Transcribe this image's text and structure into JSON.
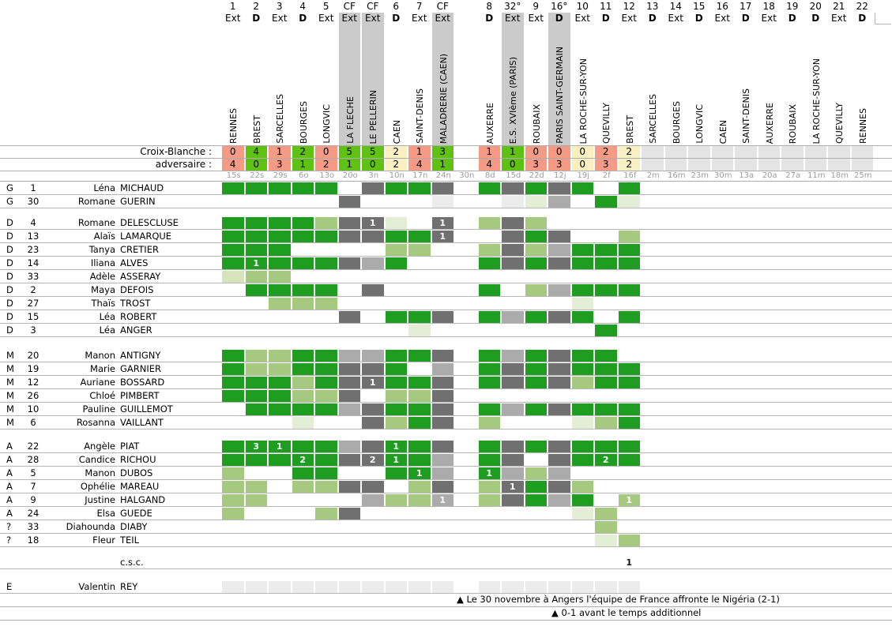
{
  "labels": {
    "team": "Croix-Blanche :",
    "opponent": "adversaire :",
    "own_goal_row": "c.s.c."
  },
  "palette": {
    "cell": {
      "G": "#1f9d20",
      "g": "#a4c97f",
      "p": "#d5e4ba",
      "f": "#e4eed6",
      "K": "#707070",
      "k": "#ababab",
      "L": "#ececec",
      "n": "transparent"
    },
    "score": {
      "win": "#5ec114",
      "loss": "#f49a85",
      "draw": "#f8f0c2",
      "future": "#e4e4e4",
      "none": "transparent"
    },
    "cup_band": "#cbcbcb"
  },
  "legend_hint": {
    "G": "full-match",
    "g": "partial-match",
    "p": "short-appearance",
    "f": "brief-appearance",
    "K": "cup-match-full",
    "k": "cup-match-partial",
    "L": "in-squad",
    "n": "text-only"
  },
  "columns": [
    {
      "num": "1",
      "venue": "Ext",
      "opp": "RENNES",
      "home": "0",
      "away": "4",
      "result": "loss",
      "date": "15s",
      "cup": false
    },
    {
      "num": "2",
      "venue": "D",
      "opp": "BREST",
      "home": "4",
      "away": "0",
      "result": "win",
      "date": "22s",
      "cup": false
    },
    {
      "num": "3",
      "venue": "Ext",
      "opp": "SARCELLES",
      "home": "1",
      "away": "3",
      "result": "loss",
      "date": "29s",
      "cup": false
    },
    {
      "num": "4",
      "venue": "D",
      "opp": "BOURGES",
      "home": "2",
      "away": "1",
      "result": "win",
      "date": "6o",
      "cup": false
    },
    {
      "num": "5",
      "venue": "Ext",
      "opp": "LONGVIC",
      "home": "0",
      "away": "2",
      "result": "loss",
      "date": "13o",
      "cup": false
    },
    {
      "num": "CF",
      "venue": "Ext",
      "opp": "LA FLECHE",
      "home": "5",
      "away": "1",
      "result": "win",
      "date": "20o",
      "cup": true
    },
    {
      "num": "CF",
      "venue": "Ext",
      "opp": "LE PELLERIN",
      "home": "5",
      "away": "0",
      "result": "win",
      "date": "3n",
      "cup": true
    },
    {
      "num": "6",
      "venue": "D",
      "opp": "CAEN",
      "home": "2",
      "away": "2",
      "result": "draw",
      "date": "10n",
      "cup": false
    },
    {
      "num": "7",
      "venue": "Ext",
      "opp": "SAINT-DENIS",
      "home": "1",
      "away": "4",
      "result": "loss",
      "date": "17n",
      "cup": false
    },
    {
      "num": "CF",
      "venue": "Ext",
      "opp": "MALADRERIE (CAEN)",
      "home": "3",
      "away": "1",
      "result": "win",
      "date": "24n",
      "cup": true
    },
    {
      "num": "",
      "venue": "",
      "opp": "",
      "home": "",
      "away": "",
      "result": "none",
      "date": "30n",
      "cup": false
    },
    {
      "num": "8",
      "venue": "D",
      "opp": "AUXERRE",
      "home": "1",
      "away": "4",
      "result": "loss",
      "date": "8d",
      "cup": false
    },
    {
      "num": "32°",
      "venue": "Ext",
      "opp": "E.S. XVIème (PARIS)",
      "home": "1",
      "away": "0",
      "result": "win",
      "date": "15d",
      "cup": true
    },
    {
      "num": "9",
      "venue": "Ext",
      "opp": "ROUBAIX",
      "home": "0",
      "away": "3",
      "result": "loss",
      "date": "22d",
      "cup": false
    },
    {
      "num": "16°",
      "venue": "D",
      "opp": "PARIS SAINT-GERMAIN",
      "home": "0",
      "away": "3",
      "result": "loss",
      "date": "12j",
      "cup": true
    },
    {
      "num": "10",
      "venue": "Ext",
      "opp": "LA ROCHE-SUR-YON",
      "home": "0",
      "away": "0",
      "result": "draw",
      "date": "19j",
      "cup": false
    },
    {
      "num": "11",
      "venue": "D",
      "opp": "QUEVILLY",
      "home": "2",
      "away": "3",
      "result": "loss",
      "date": "2f",
      "cup": false
    },
    {
      "num": "12",
      "venue": "Ext",
      "opp": "BREST",
      "home": "2",
      "away": "2",
      "result": "draw",
      "date": "16f",
      "cup": false
    },
    {
      "num": "13",
      "venue": "D",
      "opp": "SARCELLES",
      "home": "",
      "away": "",
      "result": "future",
      "date": "2m",
      "cup": false
    },
    {
      "num": "14",
      "venue": "Ext",
      "opp": "BOURGES",
      "home": "",
      "away": "",
      "result": "future",
      "date": "16m",
      "cup": false
    },
    {
      "num": "15",
      "venue": "D",
      "opp": "LONGVIC",
      "home": "",
      "away": "",
      "result": "future",
      "date": "23m",
      "cup": false
    },
    {
      "num": "16",
      "venue": "Ext",
      "opp": "CAEN",
      "home": "",
      "away": "",
      "result": "future",
      "date": "30m",
      "cup": false
    },
    {
      "num": "17",
      "venue": "D",
      "opp": "SAINT-DENIS",
      "home": "",
      "away": "",
      "result": "future",
      "date": "13a",
      "cup": false
    },
    {
      "num": "18",
      "venue": "Ext",
      "opp": "AUXERRE",
      "home": "",
      "away": "",
      "result": "future",
      "date": "20a",
      "cup": false
    },
    {
      "num": "19",
      "venue": "D",
      "opp": "ROUBAIX",
      "home": "",
      "away": "",
      "result": "future",
      "date": "27a",
      "cup": false
    },
    {
      "num": "20",
      "venue": "D",
      "opp": "LA ROCHE-SUR-YON",
      "home": "",
      "away": "",
      "result": "future",
      "date": "11m",
      "cup": false
    },
    {
      "num": "21",
      "venue": "Ext",
      "opp": "QUEVILLY",
      "home": "",
      "away": "",
      "result": "future",
      "date": "18m",
      "cup": false
    },
    {
      "num": "22",
      "venue": "D",
      "opp": "RENNES",
      "home": "",
      "away": "",
      "result": "future",
      "date": "25m",
      "cup": false
    }
  ],
  "groups": [
    {
      "id": "goalkeepers",
      "rows": [
        {
          "pos": "G",
          "num": "1",
          "first": "Léna",
          "last": "MICHAUD",
          "cells": {
            "1": "G",
            "2": "G",
            "3": "G",
            "4": "G",
            "5": "G",
            "7": "K",
            "8": "G",
            "9": "G",
            "10": "K",
            "12": "G",
            "13": "K",
            "14": "G",
            "15": "K",
            "16": "G",
            "18": "G"
          }
        },
        {
          "pos": "G",
          "num": "30",
          "first": "Romane",
          "last": "GUERIN",
          "cells": {
            "6": "K",
            "10": "L",
            "13": "L",
            "14": "f",
            "15": "k",
            "17": "G",
            "18": "f"
          }
        }
      ]
    },
    {
      "id": "defenders",
      "rows": [
        {
          "pos": "D",
          "num": "4",
          "first": "Romane",
          "last": "DELESCLUSE",
          "cells": {
            "1": "G",
            "2": "G",
            "3": "G",
            "4": "G",
            "5": "g",
            "6": "K",
            "7": "K:1",
            "8": "f",
            "10": "K:1",
            "12": "g",
            "13": "K",
            "14": "g"
          }
        },
        {
          "pos": "D",
          "num": "13",
          "first": "Alaïs",
          "last": "LAMARQUE",
          "cells": {
            "1": "G",
            "2": "G",
            "3": "G",
            "4": "G",
            "5": "G",
            "6": "K",
            "7": "K",
            "8": "G",
            "9": "G",
            "10": "K:1",
            "13": "K",
            "14": "G",
            "15": "K",
            "18": "g"
          }
        },
        {
          "pos": "D",
          "num": "23",
          "first": "Tanya",
          "last": "CRETIER",
          "cells": {
            "1": "G",
            "2": "G",
            "3": "G",
            "8": "g",
            "9": "g",
            "12": "g",
            "13": "K",
            "14": "g",
            "15": "k",
            "16": "G",
            "17": "G",
            "18": "G"
          }
        },
        {
          "pos": "D",
          "num": "14",
          "first": "Iliana",
          "last": "ALVES",
          "cells": {
            "1": "G",
            "2": "G:1",
            "3": "G",
            "4": "G",
            "5": "G",
            "6": "K",
            "7": "k",
            "8": "G",
            "12": "G",
            "13": "K",
            "14": "G",
            "15": "K",
            "16": "G",
            "17": "G",
            "18": "G"
          }
        },
        {
          "pos": "D",
          "num": "33",
          "first": "Adèle",
          "last": "ASSERAY",
          "cells": {
            "1": "p",
            "2": "g",
            "3": "g"
          }
        },
        {
          "pos": "D",
          "num": "2",
          "first": "Maya",
          "last": "DEFOIS",
          "cells": {
            "2": "G",
            "3": "G",
            "4": "G",
            "5": "G",
            "7": "K",
            "12": "G",
            "14": "g",
            "15": "k",
            "16": "G",
            "17": "G",
            "18": "G"
          }
        },
        {
          "pos": "D",
          "num": "27",
          "first": "Thaïs",
          "last": "TROST",
          "cells": {
            "3": "g",
            "4": "g",
            "5": "g",
            "16": "f"
          }
        },
        {
          "pos": "D",
          "num": "15",
          "first": "Léa",
          "last": "ROBERT",
          "cells": {
            "6": "K",
            "8": "G",
            "9": "G",
            "10": "K",
            "12": "G",
            "13": "k",
            "14": "G",
            "15": "K",
            "16": "G",
            "18": "G"
          }
        },
        {
          "pos": "D",
          "num": "3",
          "first": "Léa",
          "last": "ANGER",
          "cells": {
            "9": "f",
            "17": "G"
          }
        }
      ]
    },
    {
      "id": "midfielders",
      "rows": [
        {
          "pos": "M",
          "num": "20",
          "first": "Manon",
          "last": "ANTIGNY",
          "cells": {
            "1": "G",
            "2": "g",
            "3": "g",
            "4": "G",
            "5": "G",
            "6": "k",
            "7": "k",
            "8": "G",
            "9": "G",
            "10": "K",
            "12": "G",
            "13": "k",
            "14": "G",
            "15": "K",
            "16": "G",
            "17": "G"
          }
        },
        {
          "pos": "M",
          "num": "19",
          "first": "Marie",
          "last": "GARNIER",
          "cells": {
            "1": "G",
            "2": "g",
            "3": "g",
            "4": "G",
            "5": "G",
            "6": "K",
            "7": "K",
            "8": "G",
            "10": "k",
            "12": "G",
            "13": "K",
            "14": "G",
            "15": "K",
            "16": "G",
            "17": "G",
            "18": "G"
          }
        },
        {
          "pos": "M",
          "num": "12",
          "first": "Auriane",
          "last": "BOSSARD",
          "cells": {
            "1": "G",
            "2": "G",
            "3": "G",
            "4": "g",
            "5": "G",
            "6": "K",
            "7": "K:1",
            "8": "G",
            "9": "G",
            "10": "K",
            "12": "G",
            "13": "K",
            "14": "G",
            "15": "K",
            "16": "g",
            "17": "G",
            "18": "G"
          }
        },
        {
          "pos": "M",
          "num": "26",
          "first": "Chloé",
          "last": "PIMBERT",
          "cells": {
            "1": "G",
            "2": "G",
            "3": "G",
            "4": "g",
            "5": "g",
            "6": "K",
            "8": "g",
            "9": "g",
            "10": "K"
          }
        },
        {
          "pos": "M",
          "num": "10",
          "first": "Pauline",
          "last": "GUILLEMOT",
          "cells": {
            "2": "G",
            "3": "G",
            "4": "G",
            "5": "G",
            "6": "k",
            "7": "K",
            "8": "G",
            "9": "G",
            "10": "K",
            "12": "G",
            "13": "k",
            "14": "G",
            "15": "K",
            "16": "G",
            "17": "G",
            "18": "G"
          }
        },
        {
          "pos": "M",
          "num": "6",
          "first": "Rosanna",
          "last": "VAILLANT",
          "cells": {
            "4": "f",
            "7": "K",
            "8": "g",
            "9": "G",
            "10": "K",
            "12": "g",
            "16": "f",
            "17": "g",
            "18": "G"
          }
        }
      ]
    },
    {
      "id": "forwards",
      "rows": [
        {
          "pos": "A",
          "num": "22",
          "first": "Angèle",
          "last": "PIAT",
          "cells": {
            "1": "G",
            "2": "G:3",
            "3": "G:1",
            "4": "G",
            "5": "G",
            "6": "k",
            "7": "K",
            "8": "G:1",
            "9": "G",
            "10": "K",
            "12": "G",
            "13": "K",
            "14": "G",
            "15": "K",
            "16": "G",
            "17": "G",
            "18": "G"
          }
        },
        {
          "pos": "A",
          "num": "28",
          "first": "Candice",
          "last": "RICHOU",
          "cells": {
            "1": "G",
            "2": "G",
            "3": "G",
            "4": "G:2",
            "5": "G",
            "6": "K",
            "7": "K:2",
            "8": "G:1",
            "9": "G",
            "10": "k",
            "12": "G",
            "13": "K",
            "15": "K",
            "16": "G",
            "17": "G:2",
            "18": "G"
          }
        },
        {
          "pos": "A",
          "num": "5",
          "first": "Manon",
          "last": "DUBOS",
          "cells": {
            "1": "g",
            "4": "G",
            "5": "G",
            "8": "G",
            "9": "G:1",
            "10": "k",
            "12": "G:1",
            "13": "k",
            "14": "g",
            "15": "k"
          }
        },
        {
          "pos": "A",
          "num": "7",
          "first": "Ophélie",
          "last": "MAREAU",
          "cells": {
            "1": "g",
            "2": "g",
            "4": "g",
            "5": "g",
            "6": "K",
            "7": "K",
            "9": "g",
            "10": "K",
            "12": "g",
            "13": "K:1",
            "14": "G",
            "15": "K",
            "16": "g"
          }
        },
        {
          "pos": "A",
          "num": "9",
          "first": "Justine",
          "last": "HALGAND",
          "cells": {
            "1": "g",
            "2": "g",
            "7": "k",
            "8": "g",
            "9": "g",
            "10": "k:1",
            "12": "g",
            "13": "K",
            "14": "G",
            "15": "k",
            "16": "G",
            "18": "g:1"
          }
        },
        {
          "pos": "A",
          "num": "24",
          "first": "Elsa",
          "last": "GUEDE",
          "cells": {
            "1": "g",
            "5": "g",
            "6": "K",
            "16": "f",
            "17": "g"
          }
        },
        {
          "pos": "?",
          "num": "33",
          "first": "Diahounda",
          "last": "DIABY",
          "cells": {
            "17": "g"
          }
        },
        {
          "pos": "?",
          "num": "18",
          "first": "Fleur",
          "last": "TEIL",
          "cells": {
            "17": "f",
            "18": "g"
          }
        }
      ]
    }
  ],
  "own_goal_row": {
    "label": "c.s.c.",
    "cells": {
      "18": "n:1"
    }
  },
  "reserve_row": {
    "pos": "E",
    "num": "",
    "first": "Valentin",
    "last": "REY",
    "cells": {
      "1": "L",
      "2": "L",
      "3": "L",
      "4": "L",
      "5": "L",
      "6": "L",
      "7": "L",
      "8": "L",
      "9": "L",
      "10": "L",
      "12": "L",
      "13": "L",
      "14": "L",
      "15": "L",
      "16": "L",
      "17": "L",
      "18": "L"
    }
  },
  "footnotes": [
    {
      "text": "▲ Le 30 novembre à Angers l'équipe de France affronte le Nigéria (2-1)",
      "indent": 578
    },
    {
      "text": "▲ 0-1 avant le temps additionnel",
      "indent": 698
    }
  ]
}
